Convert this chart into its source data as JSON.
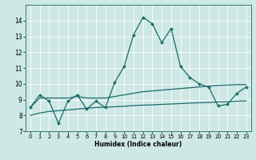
{
  "xlabel": "Humidex (Indice chaleur)",
  "xlim": [
    -0.5,
    23.5
  ],
  "ylim": [
    7,
    15
  ],
  "yticks": [
    7,
    8,
    9,
    10,
    11,
    12,
    13,
    14
  ],
  "xticks": [
    0,
    1,
    2,
    3,
    4,
    5,
    6,
    7,
    8,
    9,
    10,
    11,
    12,
    13,
    14,
    15,
    16,
    17,
    18,
    19,
    20,
    21,
    22,
    23
  ],
  "bg_color": "#cde8e5",
  "grid_color": "#ffffff",
  "line_color": "#1a6b6b",
  "line1_x": [
    0,
    1,
    2,
    3,
    4,
    5,
    6,
    7,
    8,
    9,
    10,
    11,
    12,
    13,
    14,
    15,
    16,
    17,
    18,
    19,
    20,
    21,
    22,
    23
  ],
  "line1_y": [
    8.5,
    9.3,
    8.9,
    7.5,
    8.9,
    9.3,
    8.4,
    8.9,
    8.5,
    10.1,
    11.1,
    13.1,
    14.2,
    13.8,
    12.6,
    13.5,
    11.1,
    10.4,
    10.0,
    9.8,
    8.6,
    8.7,
    9.4,
    9.8
  ],
  "line2_x": [
    0,
    1,
    2,
    3,
    4,
    5,
    6,
    7,
    8,
    9,
    10,
    11,
    12,
    13,
    14,
    15,
    16,
    17,
    18,
    19,
    20,
    21,
    22,
    23
  ],
  "line2_y": [
    8.5,
    9.1,
    9.1,
    9.1,
    9.1,
    9.2,
    9.1,
    9.1,
    9.1,
    9.2,
    9.3,
    9.4,
    9.5,
    9.55,
    9.6,
    9.65,
    9.7,
    9.75,
    9.8,
    9.85,
    9.9,
    9.92,
    9.95,
    9.95
  ],
  "line3_x": [
    0,
    1,
    2,
    3,
    4,
    5,
    6,
    7,
    8,
    9,
    10,
    11,
    12,
    13,
    14,
    15,
    16,
    17,
    18,
    19,
    20,
    21,
    22,
    23
  ],
  "line3_y": [
    8.0,
    8.15,
    8.25,
    8.3,
    8.35,
    8.4,
    8.45,
    8.5,
    8.52,
    8.55,
    8.58,
    8.62,
    8.65,
    8.67,
    8.7,
    8.72,
    8.75,
    8.78,
    8.8,
    8.82,
    8.85,
    8.87,
    8.9,
    8.92
  ]
}
